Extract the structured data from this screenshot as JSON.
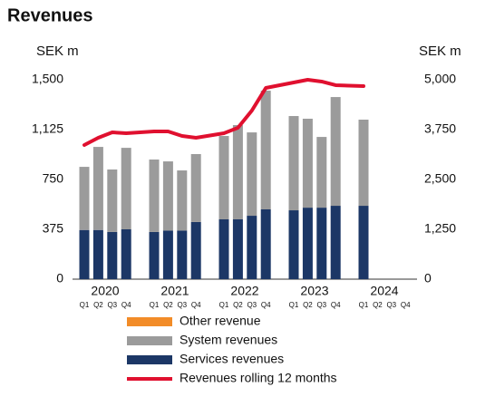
{
  "chart_data": {
    "type": "bar_line",
    "title": "Revenues",
    "y_label": "SEK m",
    "y2_label": "SEK m",
    "years": [
      "2020",
      "2021",
      "2022",
      "2023",
      "2024"
    ],
    "categories": [
      "Q1",
      "Q2",
      "Q3",
      "Q4",
      "Q1",
      "Q2",
      "Q3",
      "Q4",
      "Q1",
      "Q2",
      "Q3",
      "Q4",
      "Q1",
      "Q2",
      "Q3",
      "Q4",
      "Q1",
      "Q2",
      "Q3",
      "Q4"
    ],
    "ylim": [
      0,
      1500
    ],
    "yticks": [
      0,
      375,
      750,
      {
        "value": 1125,
        "label": "1,125"
      },
      {
        "value": 1500,
        "label": "1,500"
      }
    ],
    "y2lim": [
      0,
      5000
    ],
    "y2ticks": [
      0,
      {
        "value": 1250,
        "label": "1,250"
      },
      {
        "value": 2500,
        "label": "2,500"
      },
      {
        "value": 3750,
        "label": "3,750"
      },
      {
        "value": 5000,
        "label": "5,000"
      }
    ],
    "series": [
      {
        "name": "Other revenue",
        "color": "#f28c28",
        "kind": "bar",
        "values": [
          0,
          0,
          0,
          0,
          0,
          0,
          0,
          0,
          0,
          0,
          0,
          0,
          0,
          0,
          0,
          0,
          0,
          null,
          null,
          null
        ]
      },
      {
        "name": "System revenues",
        "color": "#9b9b9b",
        "kind": "bar",
        "values": [
          475,
          625,
          470,
          613,
          545,
          521,
          453,
          511,
          627,
          709,
          627,
          893,
          709,
          669,
          532,
          818,
          648,
          null,
          null,
          null
        ]
      },
      {
        "name": "Services revenues",
        "color": "#1c3766",
        "kind": "bar",
        "values": [
          370,
          370,
          355,
          375,
          355,
          365,
          365,
          430,
          450,
          450,
          477,
          525,
          518,
          538,
          538,
          552,
          552,
          null,
          null,
          null
        ]
      },
      {
        "name": "Revenues rolling 12 months",
        "color": "#e0102f",
        "kind": "line",
        "axis": "y2",
        "values": [
          3364,
          3545,
          3682,
          3659,
          3705,
          3705,
          3591,
          3545,
          3659,
          3795,
          4227,
          4795,
          4932,
          5000,
          4955,
          4864,
          4841,
          null,
          null,
          null
        ]
      }
    ]
  }
}
